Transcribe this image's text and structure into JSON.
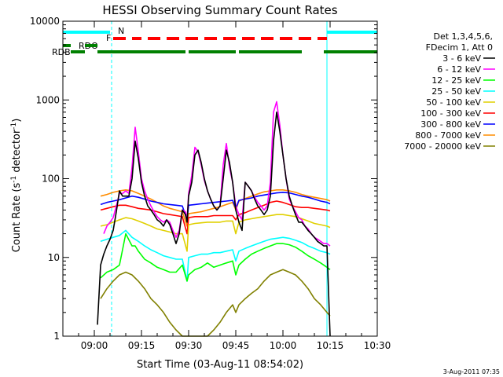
{
  "chart_data": {
    "type": "line",
    "title": "HESSI Observing Summary Count Rates",
    "xlabel": "Start Time (03-Aug-11 08:54:02)",
    "ylabel_main": "Count Rate (s",
    "ylabel_sup1": "-1",
    "ylabel_mid": " detector",
    "ylabel_sup2": "-1",
    "ylabel_end": ")",
    "footer": "3-Aug-2011 07:35",
    "y_scale": "log",
    "ylim": [
      1,
      10000
    ],
    "xlim_minutes": [
      -4,
      96
    ],
    "x_ticks": [
      {
        "t": 6,
        "label": "09:00"
      },
      {
        "t": 21,
        "label": "09:15"
      },
      {
        "t": 36,
        "label": "09:30"
      },
      {
        "t": 51,
        "label": "09:45"
      },
      {
        "t": 66,
        "label": "10:00"
      },
      {
        "t": 81,
        "label": "10:15"
      },
      {
        "t": 96,
        "label": "10:30"
      }
    ],
    "y_ticks": [
      {
        "v": 1,
        "label": "1"
      },
      {
        "v": 10,
        "label": "10"
      },
      {
        "v": 100,
        "label": "100"
      },
      {
        "v": 1000,
        "label": "1000"
      },
      {
        "v": 10000,
        "label": "10000"
      }
    ],
    "legend": {
      "header": [
        "Det 1,3,4,5,6,",
        "FDecim 1, Att 0"
      ],
      "entries": [
        {
          "label": "3 - 6 keV",
          "color": "#000000"
        },
        {
          "label": "6 - 12 keV",
          "color": "#ff00ff"
        },
        {
          "label": "12 - 25 keV",
          "color": "#00ff00"
        },
        {
          "label": "25 - 50 keV",
          "color": "#00ffff"
        },
        {
          "label": "50 - 100 keV",
          "color": "#e0d000"
        },
        {
          "label": "100 - 300 keV",
          "color": "#ff0000"
        },
        {
          "label": "300 - 800 keV",
          "color": "#0000ff"
        },
        {
          "label": "800 - 7000 keV",
          "color": "#ff8c00"
        },
        {
          "label": "7000 - 20000 keV",
          "color": "#808000"
        }
      ]
    },
    "flags": {
      "N_label": "N",
      "F_label": "F",
      "RDO_label": "RDO",
      "RDB_label": "RDB",
      "N_color": "#00ffff",
      "F_color": "#ff0000",
      "R_color": "#008000",
      "N_intervals": [
        [
          -4,
          11
        ],
        [
          80,
          96
        ]
      ],
      "F_intervals": [
        [
          12,
          16
        ],
        [
          18,
          21
        ],
        [
          23,
          27
        ],
        [
          29,
          33
        ],
        [
          35,
          39
        ],
        [
          41,
          45
        ],
        [
          47,
          51
        ],
        [
          53,
          57
        ],
        [
          59,
          63
        ],
        [
          65,
          69
        ],
        [
          71,
          75
        ],
        [
          77,
          80
        ]
      ],
      "RDO_intervals": [
        [
          -4,
          -1.5
        ],
        [
          3,
          7
        ]
      ],
      "RDB_intervals": [
        [
          -1.5,
          3
        ],
        [
          7,
          35
        ],
        [
          36,
          51
        ],
        [
          52,
          72
        ],
        [
          79,
          96
        ]
      ]
    },
    "night_boundaries_minutes": [
      -4,
      11.5,
      80,
      96
    ],
    "series": [
      {
        "name": "3 - 6 keV",
        "color": "#000000",
        "x": [
          7,
          8,
          9,
          10,
          11,
          12,
          13,
          14,
          15,
          16,
          17,
          18,
          19,
          20,
          21,
          22,
          23,
          24,
          25,
          26,
          27,
          28,
          29,
          30,
          31,
          32,
          33,
          34,
          35,
          35.5,
          36,
          37,
          38,
          39,
          40,
          41,
          42,
          43,
          44,
          45,
          46,
          47,
          48,
          49,
          50,
          51,
          52,
          53,
          54,
          55,
          56,
          57,
          58,
          59,
          60,
          61,
          62,
          63,
          64,
          65,
          66,
          67,
          68,
          69,
          70,
          71,
          72,
          73,
          74,
          75,
          76,
          77,
          78,
          79,
          80,
          81
        ],
        "y": [
          1.4,
          8,
          11,
          14,
          17,
          22,
          38,
          70,
          60,
          60,
          60,
          100,
          300,
          180,
          90,
          60,
          45,
          40,
          35,
          30,
          28,
          25,
          30,
          26,
          20,
          15,
          20,
          40,
          35,
          28,
          60,
          90,
          200,
          230,
          160,
          100,
          70,
          55,
          45,
          40,
          45,
          100,
          230,
          160,
          90,
          40,
          28,
          22,
          90,
          80,
          70,
          55,
          45,
          40,
          35,
          40,
          60,
          300,
          700,
          400,
          200,
          100,
          60,
          45,
          35,
          28,
          28,
          25,
          22,
          20,
          18,
          16,
          15,
          14,
          14,
          0
        ]
      },
      {
        "name": "6 - 12 keV",
        "color": "#ff00ff",
        "x": [
          9,
          10,
          11,
          12,
          13,
          14,
          15,
          16,
          17,
          18,
          19,
          20,
          21,
          22,
          23,
          24,
          25,
          26,
          27,
          28,
          29,
          30,
          31,
          32,
          33,
          34,
          35,
          35.5,
          36,
          37,
          38,
          39,
          40,
          41,
          42,
          43,
          44,
          45,
          46,
          47,
          48,
          49,
          50,
          51,
          52,
          53,
          54,
          55,
          56,
          57,
          58,
          59,
          60,
          61,
          62,
          63,
          64,
          65,
          66,
          67,
          68,
          69,
          70,
          71,
          72,
          73,
          74,
          75,
          76,
          77,
          78,
          79,
          80,
          81
        ],
        "y": [
          20,
          25,
          28,
          32,
          45,
          65,
          65,
          70,
          65,
          140,
          450,
          220,
          100,
          70,
          55,
          45,
          38,
          33,
          30,
          28,
          30,
          28,
          22,
          18,
          22,
          40,
          38,
          30,
          65,
          110,
          250,
          220,
          150,
          95,
          70,
          55,
          45,
          40,
          45,
          150,
          280,
          140,
          90,
          45,
          35,
          30,
          90,
          80,
          70,
          58,
          50,
          45,
          40,
          45,
          90,
          700,
          950,
          480,
          200,
          100,
          55,
          45,
          38,
          32,
          30,
          25,
          23,
          20,
          18,
          17,
          16,
          15,
          15,
          14
        ]
      },
      {
        "name": "12 - 25 keV",
        "color": "#00ff00",
        "x": [
          8,
          10,
          12,
          14,
          16,
          18,
          19,
          20,
          22,
          24,
          26,
          28,
          30,
          32,
          34,
          35.5,
          36,
          38,
          40,
          42,
          44,
          46,
          48,
          50,
          51,
          52,
          54,
          56,
          58,
          60,
          62,
          64,
          66,
          68,
          70,
          72,
          74,
          76,
          78,
          80,
          81
        ],
        "y": [
          5.5,
          6.5,
          7,
          8,
          20,
          14,
          14,
          12,
          9.5,
          8.5,
          7.5,
          7,
          6.5,
          6.5,
          8,
          5,
          6,
          7,
          7.5,
          8.5,
          7.5,
          8,
          8.5,
          9,
          6,
          8,
          9.5,
          11,
          12,
          13,
          14,
          15,
          15,
          14.5,
          13.5,
          12,
          10.5,
          9.5,
          8.5,
          7.5,
          7
        ]
      },
      {
        "name": "25 - 50 keV",
        "color": "#00ffff",
        "x": [
          8,
          10,
          12,
          14,
          16,
          18,
          20,
          22,
          24,
          26,
          28,
          30,
          32,
          34,
          35.5,
          36,
          38,
          40,
          42,
          44,
          46,
          48,
          50,
          51,
          52,
          54,
          56,
          58,
          60,
          62,
          64,
          66,
          68,
          70,
          72,
          74,
          76,
          78,
          80,
          81
        ],
        "y": [
          16,
          17,
          18,
          19,
          22,
          18,
          16,
          14,
          12.5,
          11.5,
          10.5,
          10,
          9.5,
          9.5,
          5,
          10,
          10.5,
          11,
          11,
          11.5,
          11.5,
          12,
          12.5,
          9,
          12,
          13,
          14,
          15,
          16,
          17,
          17.5,
          18,
          17.5,
          16.5,
          15.5,
          14,
          13,
          12,
          11.5,
          11
        ]
      },
      {
        "name": "50 - 100 keV",
        "color": "#e0d000",
        "x": [
          8,
          10,
          12,
          14,
          16,
          18,
          20,
          22,
          24,
          26,
          28,
          30,
          32,
          34,
          35.5,
          36,
          38,
          40,
          42,
          44,
          46,
          48,
          50,
          51,
          52,
          54,
          56,
          58,
          60,
          62,
          64,
          66,
          68,
          70,
          72,
          74,
          76,
          78,
          80,
          81
        ],
        "y": [
          25,
          26,
          28,
          30,
          32,
          31,
          29,
          27,
          25,
          23,
          22,
          21,
          20,
          20,
          12,
          26,
          27,
          27.5,
          28,
          28,
          28,
          29,
          29,
          20,
          28,
          30,
          31,
          32,
          33,
          34,
          35,
          35,
          34,
          33,
          31,
          29,
          27,
          26,
          25,
          24
        ]
      },
      {
        "name": "100 - 300 keV",
        "color": "#ff0000",
        "x": [
          8,
          10,
          12,
          14,
          16,
          18,
          20,
          22,
          24,
          26,
          28,
          30,
          32,
          34,
          35.5,
          36,
          38,
          40,
          42,
          44,
          46,
          48,
          50,
          51,
          52,
          54,
          56,
          58,
          60,
          62,
          64,
          66,
          68,
          70,
          72,
          74,
          76,
          78,
          80,
          81
        ],
        "y": [
          40,
          42,
          44,
          46,
          46,
          44,
          42,
          41,
          40,
          38,
          36,
          35,
          34,
          33,
          20,
          32,
          33,
          33,
          33,
          34,
          34,
          34,
          34,
          30,
          35,
          37,
          40,
          43,
          46,
          50,
          52,
          50,
          47,
          44,
          43,
          43,
          42,
          41,
          40,
          39
        ]
      },
      {
        "name": "300 - 800 keV",
        "color": "#0000ff",
        "x": [
          8,
          10,
          12,
          14,
          16,
          18,
          20,
          22,
          24,
          26,
          28,
          30,
          32,
          34,
          35.5,
          36,
          38,
          40,
          42,
          44,
          46,
          48,
          50,
          51,
          52,
          54,
          56,
          58,
          60,
          62,
          64,
          66,
          68,
          70,
          72,
          74,
          76,
          78,
          80,
          81
        ],
        "y": [
          47,
          50,
          52,
          54,
          57,
          60,
          58,
          55,
          52,
          50,
          48,
          47,
          46,
          45,
          30,
          46,
          47,
          48,
          49,
          50,
          51,
          52,
          53,
          42,
          53,
          55,
          57,
          60,
          62,
          64,
          66,
          67,
          66,
          63,
          60,
          58,
          55,
          52,
          50,
          48
        ]
      },
      {
        "name": "800 - 7000 keV",
        "color": "#ff8c00",
        "x": [
          8,
          10,
          12,
          14,
          16,
          18,
          20,
          22,
          24,
          26,
          28,
          30,
          32,
          34,
          35.5,
          36,
          38,
          40,
          42,
          44,
          46,
          48,
          50,
          51,
          52,
          54,
          56,
          58,
          60,
          62,
          64,
          66,
          68,
          70,
          72,
          74,
          76,
          78,
          80,
          81
        ],
        "y": [
          60,
          63,
          67,
          70,
          72,
          70,
          65,
          60,
          55,
          50,
          45,
          42,
          40,
          38,
          25,
          36,
          37,
          38,
          40,
          42,
          44,
          47,
          50,
          40,
          52,
          56,
          60,
          64,
          68,
          70,
          72,
          72,
          70,
          67,
          63,
          60,
          58,
          56,
          54,
          52
        ]
      },
      {
        "name": "7000 - 20000 keV",
        "color": "#808000",
        "x": [
          8,
          10,
          12,
          14,
          16,
          18,
          20,
          22,
          24,
          26,
          28,
          30,
          32,
          34,
          35.5,
          36,
          38,
          40,
          42,
          44,
          46,
          48,
          50,
          51,
          52,
          54,
          56,
          58,
          60,
          62,
          64,
          66,
          68,
          70,
          72,
          74,
          76,
          78,
          80,
          81
        ],
        "y": [
          3,
          4,
          5,
          6,
          6.5,
          6,
          5,
          4,
          3,
          2.5,
          2,
          1.5,
          1.2,
          1,
          1,
          1,
          1,
          1,
          1,
          1.2,
          1.5,
          2,
          2.5,
          2,
          2.5,
          3,
          3.5,
          4,
          5,
          6,
          6.5,
          7,
          6.5,
          6,
          5,
          4,
          3,
          2.5,
          2,
          1.8
        ]
      }
    ]
  }
}
